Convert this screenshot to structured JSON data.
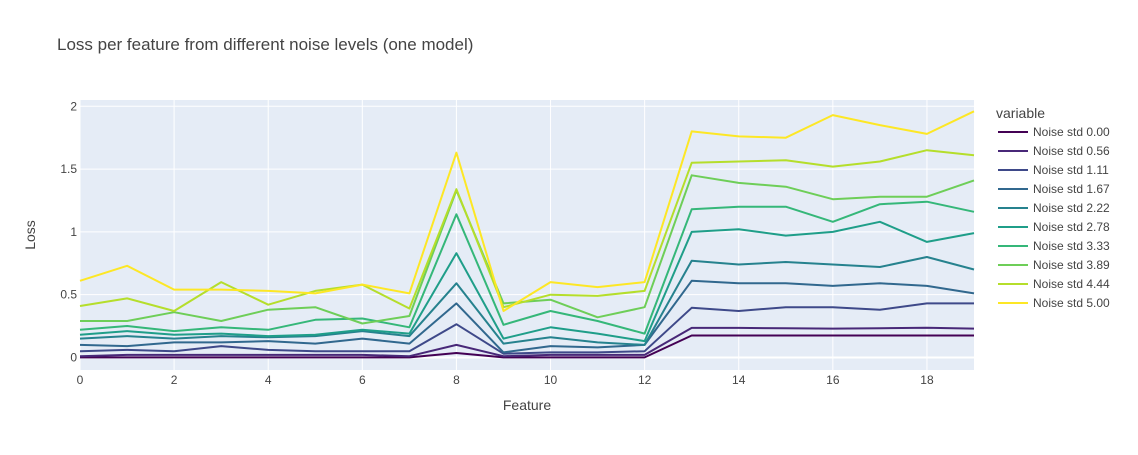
{
  "chart_data": {
    "type": "line",
    "title": "Loss per feature from different noise levels (one model)",
    "xlabel": "Feature",
    "ylabel": "Loss",
    "xlim": [
      0,
      19
    ],
    "ylim": [
      -0.1,
      2.05
    ],
    "xticks": [
      0,
      2,
      4,
      6,
      8,
      10,
      12,
      14,
      16,
      18
    ],
    "yticks": [
      0,
      0.5,
      1,
      1.5,
      2
    ],
    "ytick_labels": [
      "0",
      "0.5",
      "1",
      "1.5",
      "2"
    ],
    "grid": true,
    "legend_title": "variable",
    "legend_position": "right",
    "x": [
      0,
      1,
      2,
      3,
      4,
      5,
      6,
      7,
      8,
      9,
      10,
      11,
      12,
      13,
      14,
      15,
      16,
      17,
      18,
      19
    ],
    "series": [
      {
        "name": "Noise std 0.00",
        "color": "#440154",
        "values": [
          0,
          0,
          0,
          0,
          0,
          0,
          0,
          0,
          0.035,
          0,
          0,
          0,
          0,
          0.175,
          0.175,
          0.175,
          0.175,
          0.175,
          0.175,
          0.175
        ]
      },
      {
        "name": "Noise std 0.56",
        "color": "#482878",
        "values": [
          0.01,
          0.02,
          0.02,
          0.02,
          0.02,
          0.02,
          0.02,
          0.01,
          0.1,
          0.01,
          0.02,
          0.02,
          0.02,
          0.235,
          0.235,
          0.232,
          0.23,
          0.232,
          0.237,
          0.23
        ]
      },
      {
        "name": "Noise std 1.11",
        "color": "#3e4989",
        "values": [
          0.05,
          0.06,
          0.05,
          0.09,
          0.06,
          0.05,
          0.05,
          0.05,
          0.265,
          0.03,
          0.04,
          0.04,
          0.05,
          0.395,
          0.37,
          0.4,
          0.4,
          0.38,
          0.43,
          0.43
        ]
      },
      {
        "name": "Noise std 1.67",
        "color": "#31688e",
        "values": [
          0.1,
          0.09,
          0.12,
          0.12,
          0.13,
          0.11,
          0.15,
          0.11,
          0.43,
          0.04,
          0.09,
          0.08,
          0.1,
          0.61,
          0.59,
          0.59,
          0.57,
          0.59,
          0.57,
          0.51
        ]
      },
      {
        "name": "Noise std 2.22",
        "color": "#26828e",
        "values": [
          0.15,
          0.17,
          0.15,
          0.17,
          0.16,
          0.17,
          0.21,
          0.17,
          0.59,
          0.11,
          0.16,
          0.12,
          0.1,
          0.77,
          0.74,
          0.76,
          0.74,
          0.72,
          0.8,
          0.7
        ]
      },
      {
        "name": "Noise std 2.78",
        "color": "#1f9e89",
        "values": [
          0.18,
          0.21,
          0.18,
          0.19,
          0.17,
          0.18,
          0.22,
          0.19,
          0.83,
          0.15,
          0.24,
          0.19,
          0.13,
          1.0,
          1.02,
          0.97,
          1.0,
          1.08,
          0.92,
          0.99
        ]
      },
      {
        "name": "Noise std 3.33",
        "color": "#35b779",
        "values": [
          0.22,
          0.25,
          0.21,
          0.24,
          0.22,
          0.3,
          0.31,
          0.24,
          1.14,
          0.26,
          0.37,
          0.29,
          0.19,
          1.18,
          1.2,
          1.2,
          1.08,
          1.22,
          1.24,
          1.16
        ]
      },
      {
        "name": "Noise std 3.89",
        "color": "#6ece58",
        "values": [
          0.29,
          0.29,
          0.36,
          0.29,
          0.38,
          0.4,
          0.27,
          0.33,
          1.33,
          0.43,
          0.46,
          0.32,
          0.4,
          1.45,
          1.39,
          1.36,
          1.26,
          1.28,
          1.28,
          1.41
        ]
      },
      {
        "name": "Noise std 4.44",
        "color": "#b5de2b",
        "values": [
          0.41,
          0.47,
          0.37,
          0.6,
          0.42,
          0.53,
          0.58,
          0.39,
          1.34,
          0.4,
          0.5,
          0.49,
          0.53,
          1.55,
          1.56,
          1.57,
          1.52,
          1.56,
          1.65,
          1.61
        ]
      },
      {
        "name": "Noise std 5.00",
        "color": "#fde725",
        "values": [
          0.61,
          0.73,
          0.54,
          0.54,
          0.53,
          0.51,
          0.58,
          0.51,
          1.63,
          0.37,
          0.6,
          0.56,
          0.6,
          1.8,
          1.76,
          1.75,
          1.93,
          1.85,
          1.78,
          1.96
        ]
      }
    ]
  }
}
